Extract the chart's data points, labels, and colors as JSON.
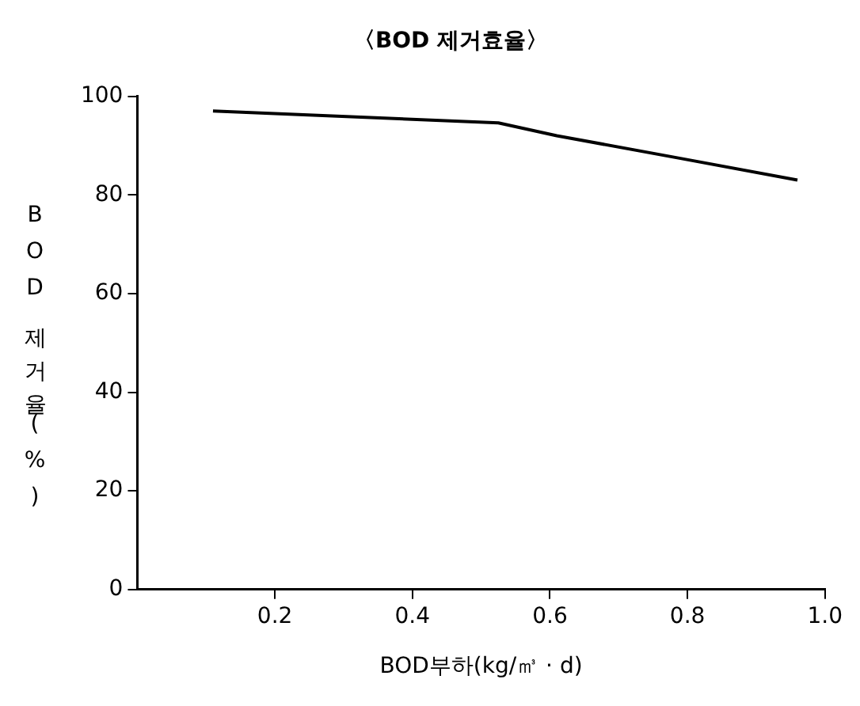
{
  "chart_data": {
    "type": "line",
    "title": "〈BOD 제거효율〉",
    "xlabel": "BOD부하(kg/㎥ · d)",
    "ylabel": "BOD제거율(%)",
    "x": [
      0.11,
      0.525,
      0.61,
      0.79,
      0.96
    ],
    "series": [
      {
        "color": "#000000",
        "values": [
          97,
          94.6,
          92,
          87.4,
          83
        ]
      }
    ],
    "xlim": [
      0,
      1
    ],
    "xticks": [
      {
        "value": 0.2,
        "label": "0.2"
      },
      {
        "value": 0.4,
        "label": "0.4"
      },
      {
        "value": 0.6,
        "label": "0.6"
      },
      {
        "value": 0.8,
        "label": "0.8"
      },
      {
        "value": 1,
        "label": "1.0"
      }
    ],
    "ylim": [
      0,
      100
    ],
    "yticks": [
      0,
      20,
      40,
      60,
      80,
      100
    ],
    "grid": false,
    "legend": false,
    "marker": "none",
    "line_style": "solid"
  }
}
